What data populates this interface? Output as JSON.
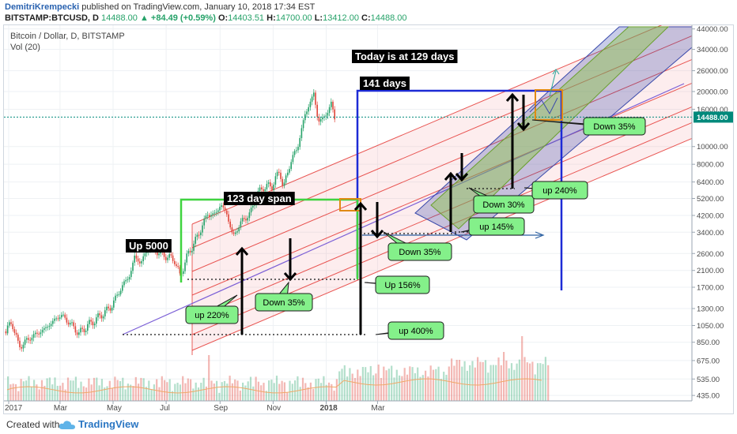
{
  "header": {
    "author": "DemitriKrempecki",
    "published_text": "published on TradingView.com, January 10, 2018 17:34 EST",
    "symbol": "BITSTAMP:BTCUSD, D",
    "last": "14488.00",
    "change": "▲ +84.49 (+0.59%)",
    "o_label": "O:",
    "o_value": "14403.51",
    "h_label": "H:",
    "h_value": "14700.00",
    "l_label": "L:",
    "l_value": "13412.00",
    "c_label": "C:",
    "c_value": "14488.00"
  },
  "legend": {
    "title": "Bitcoin / Dollar, D, BITSTAMP",
    "volume": "Vol (20)"
  },
  "footer": {
    "created_with": "Created with",
    "brand": "TradingView"
  },
  "colors": {
    "up": "#26a269",
    "down": "#e0453a",
    "channel_red": "#e53935",
    "pitch_blue": "#3949ab",
    "green_zone": "#8bc34a",
    "price_tag": "#00897b",
    "callout_fill": "#84f08a"
  },
  "chart_data": {
    "type": "candlestick",
    "scale": "log",
    "x_axis_labels": [
      "2017",
      "Mar",
      "May",
      "Jul",
      "Sep",
      "Nov",
      "2018",
      "Mar"
    ],
    "y_ticks": [
      44000,
      34000,
      26000,
      20000,
      16000,
      10000,
      8000,
      6400,
      5200,
      4200,
      3400,
      2600,
      2100,
      1700,
      1300,
      1050,
      850,
      675,
      535,
      435
    ],
    "y_tick_labels": [
      "44000.00",
      "34000.00",
      "26000.00",
      "20000.00",
      "16000.00",
      "10000.00",
      "8000.00",
      "6400.00",
      "5200.00",
      "4200.00",
      "3400.00",
      "2600.00",
      "2100.00",
      "1700.00",
      "1300.00",
      "1050.00",
      "850.00",
      "675.00",
      "535.00",
      "435.00"
    ],
    "last_price": 14488,
    "last_price_label": "14488.00",
    "price_path": [
      [
        "2016-12-28",
        975
      ],
      [
        "2017-01-04",
        1100
      ],
      [
        "2017-01-12",
        800
      ],
      [
        "2017-01-25",
        900
      ],
      [
        "2017-02-10",
        1000
      ],
      [
        "2017-03-01",
        1200
      ],
      [
        "2017-03-10",
        1100
      ],
      [
        "2017-03-22",
        950
      ],
      [
        "2017-04-01",
        1050
      ],
      [
        "2017-04-15",
        1180
      ],
      [
        "2017-04-28",
        1330
      ],
      [
        "2017-05-10",
        1700
      ],
      [
        "2017-05-20",
        2000
      ],
      [
        "2017-05-25",
        2500
      ],
      [
        "2017-06-01",
        2300
      ],
      [
        "2017-06-12",
        2950
      ],
      [
        "2017-06-20",
        2650
      ],
      [
        "2017-07-01",
        2500
      ],
      [
        "2017-07-10",
        2400
      ],
      [
        "2017-07-16",
        1950
      ],
      [
        "2017-07-25",
        2550
      ],
      [
        "2017-08-05",
        3200
      ],
      [
        "2017-08-17",
        4300
      ],
      [
        "2017-08-24",
        4200
      ],
      [
        "2017-09-01",
        4800
      ],
      [
        "2017-09-08",
        4300
      ],
      [
        "2017-09-15",
        3200
      ],
      [
        "2017-09-25",
        3900
      ],
      [
        "2017-10-05",
        4300
      ],
      [
        "2017-10-12",
        5400
      ],
      [
        "2017-10-20",
        6000
      ],
      [
        "2017-10-30",
        6100
      ],
      [
        "2017-11-08",
        7400
      ],
      [
        "2017-11-12",
        5900
      ],
      [
        "2017-11-20",
        8200
      ],
      [
        "2017-11-28",
        9800
      ],
      [
        "2017-12-07",
        15000
      ],
      [
        "2017-12-17",
        19500
      ],
      [
        "2017-12-22",
        13800
      ],
      [
        "2017-12-28",
        14200
      ],
      [
        "2018-01-06",
        17000
      ],
      [
        "2018-01-10",
        14488
      ]
    ],
    "annotations": {
      "today": "Today is at 129 days",
      "days141": "141 days",
      "span123": "123 day span",
      "up5000": "Up 5000",
      "callouts": [
        "up 220%",
        "Down 35%",
        "Up 156%",
        "up 400%",
        "Down 35%",
        "up 145%",
        "Down 30%",
        "up 240%",
        "Down 35%"
      ]
    }
  }
}
